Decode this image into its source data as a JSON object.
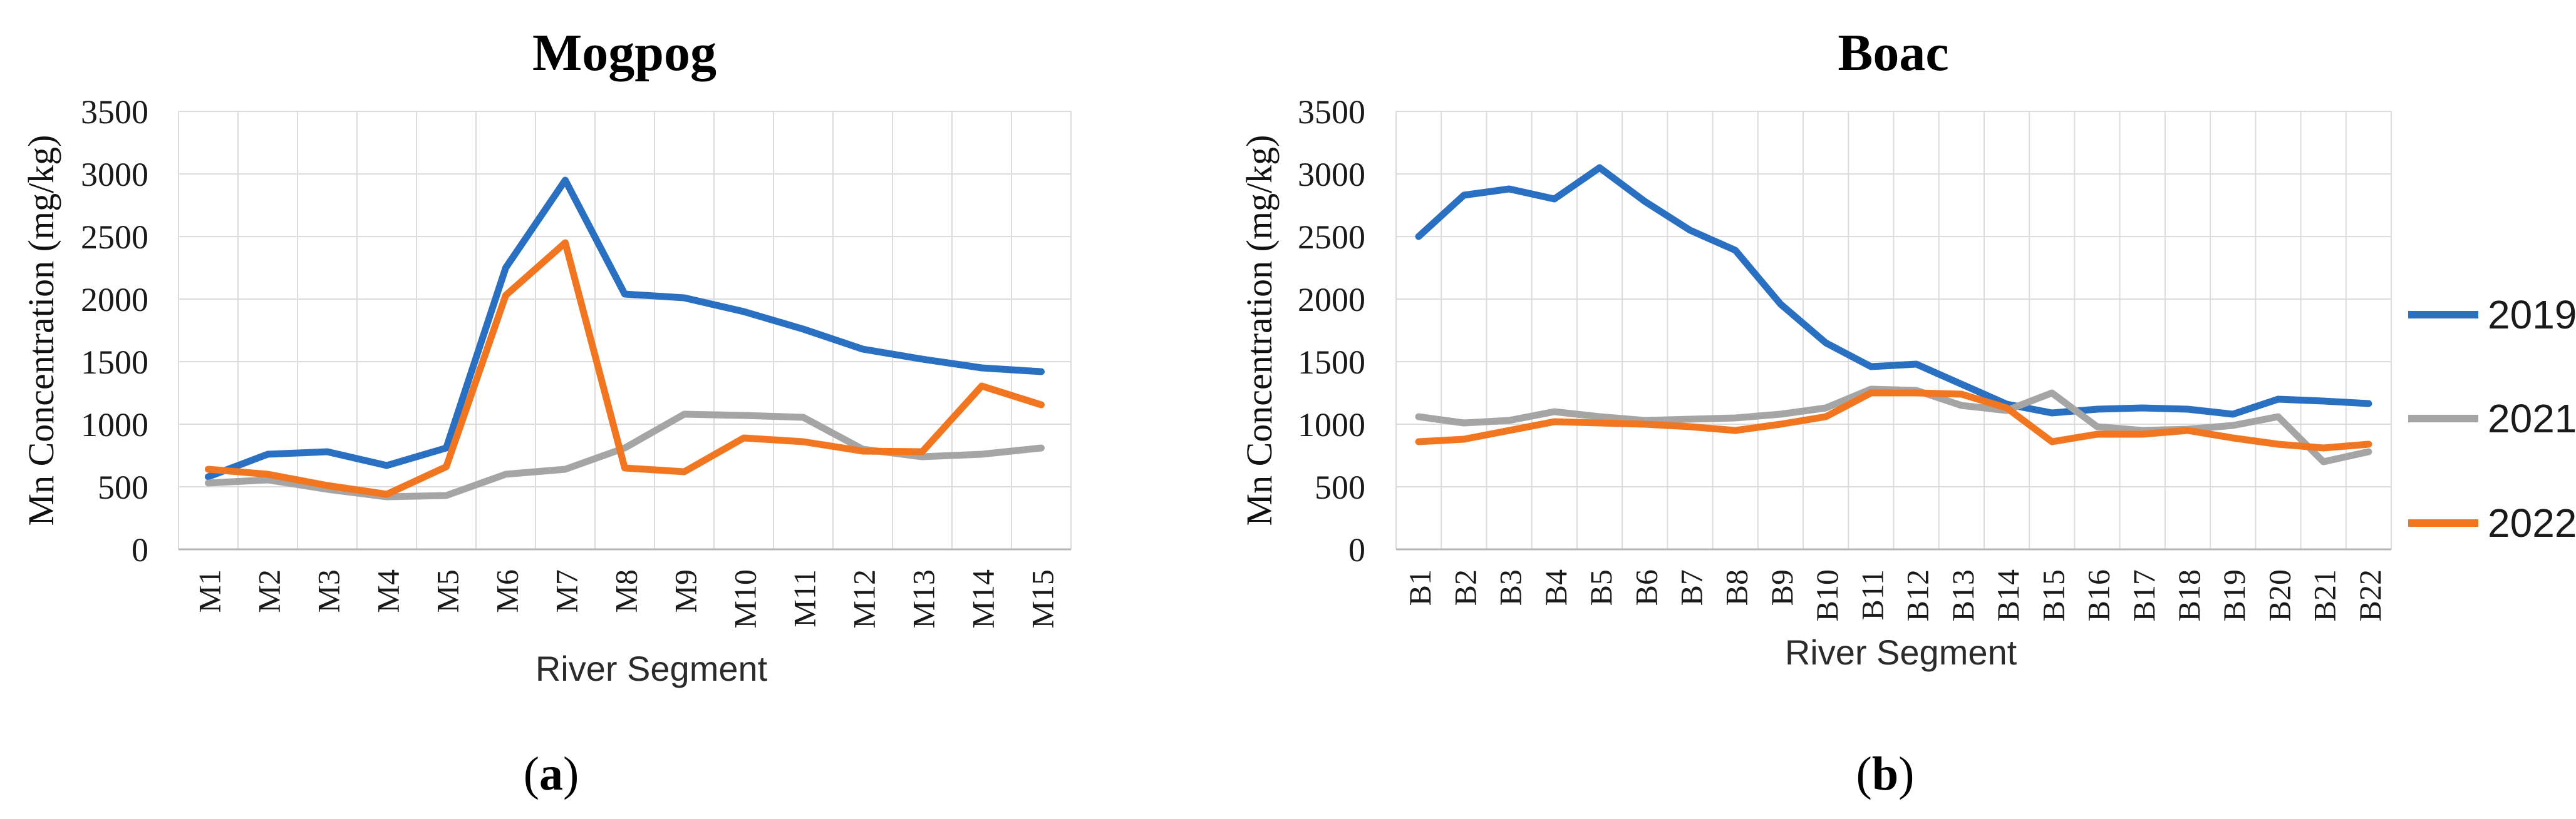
{
  "chart_data": [
    {
      "type": "line",
      "title": "Mogpog",
      "xlabel": "River Segment",
      "ylabel": "Mn Concentration (mg/kg)",
      "ylim": [
        0,
        3500
      ],
      "y_ticks": [
        0,
        500,
        1000,
        1500,
        2000,
        2500,
        3000,
        3500
      ],
      "grid": true,
      "legend_position": "right-of-second-panel",
      "categories": [
        "M1",
        "M2",
        "M3",
        "M4",
        "M5",
        "M6",
        "M7",
        "M8",
        "M9",
        "M10",
        "M11",
        "M12",
        "M13",
        "M14",
        "M15"
      ],
      "series": [
        {
          "name": "2019",
          "color": "#2A70C2",
          "values": [
            580,
            760,
            780,
            670,
            810,
            2250,
            2950,
            2040,
            2010,
            1900,
            1760,
            1600,
            1520,
            1450,
            1420
          ]
        },
        {
          "name": "2021",
          "color": "#A5A5A5",
          "values": [
            530,
            555,
            480,
            420,
            430,
            600,
            640,
            810,
            1080,
            1070,
            1055,
            800,
            740,
            760,
            810
          ]
        },
        {
          "name": "2022",
          "color": "#F2761F",
          "values": [
            640,
            600,
            510,
            440,
            660,
            2030,
            2450,
            650,
            620,
            890,
            860,
            785,
            780,
            1305,
            1155
          ]
        }
      ]
    },
    {
      "type": "line",
      "title": "Boac",
      "xlabel": "River Segment",
      "ylabel": "Mn Concentration (mg/kg)",
      "ylim": [
        0,
        3500
      ],
      "y_ticks": [
        0,
        500,
        1000,
        1500,
        2000,
        2500,
        3000,
        3500
      ],
      "grid": true,
      "legend_position": "right",
      "categories": [
        "B1",
        "B2",
        "B3",
        "B4",
        "B5",
        "B6",
        "B7",
        "B8",
        "B9",
        "B10",
        "B11",
        "B12",
        "B13",
        "B14",
        "B15",
        "B16",
        "B17",
        "B18",
        "B19",
        "B20",
        "B21",
        "B22"
      ],
      "series": [
        {
          "name": "2019",
          "color": "#2A70C2",
          "values": [
            2500,
            2830,
            2880,
            2800,
            3050,
            2780,
            2550,
            2390,
            1960,
            1650,
            1460,
            1480,
            1320,
            1160,
            1090,
            1120,
            1130,
            1120,
            1080,
            1200,
            1185,
            1165
          ]
        },
        {
          "name": "2021",
          "color": "#A5A5A5",
          "values": [
            1060,
            1010,
            1030,
            1100,
            1060,
            1030,
            1040,
            1050,
            1080,
            1130,
            1280,
            1270,
            1150,
            1110,
            1250,
            980,
            950,
            960,
            990,
            1060,
            700,
            780
          ]
        },
        {
          "name": "2022",
          "color": "#F2761F",
          "values": [
            860,
            880,
            950,
            1020,
            1010,
            1000,
            980,
            950,
            1000,
            1060,
            1250,
            1250,
            1240,
            1130,
            860,
            920,
            920,
            950,
            890,
            840,
            810,
            840
          ]
        }
      ]
    }
  ],
  "legend": {
    "items": [
      {
        "label": "2019",
        "color": "#2A70C2"
      },
      {
        "label": "2021",
        "color": "#A5A5A5"
      },
      {
        "label": "2022",
        "color": "#F2761F"
      }
    ]
  },
  "captions": [
    {
      "open": "(",
      "letter": "a",
      "close": ")"
    },
    {
      "open": "(",
      "letter": "b",
      "close": ")"
    }
  ]
}
